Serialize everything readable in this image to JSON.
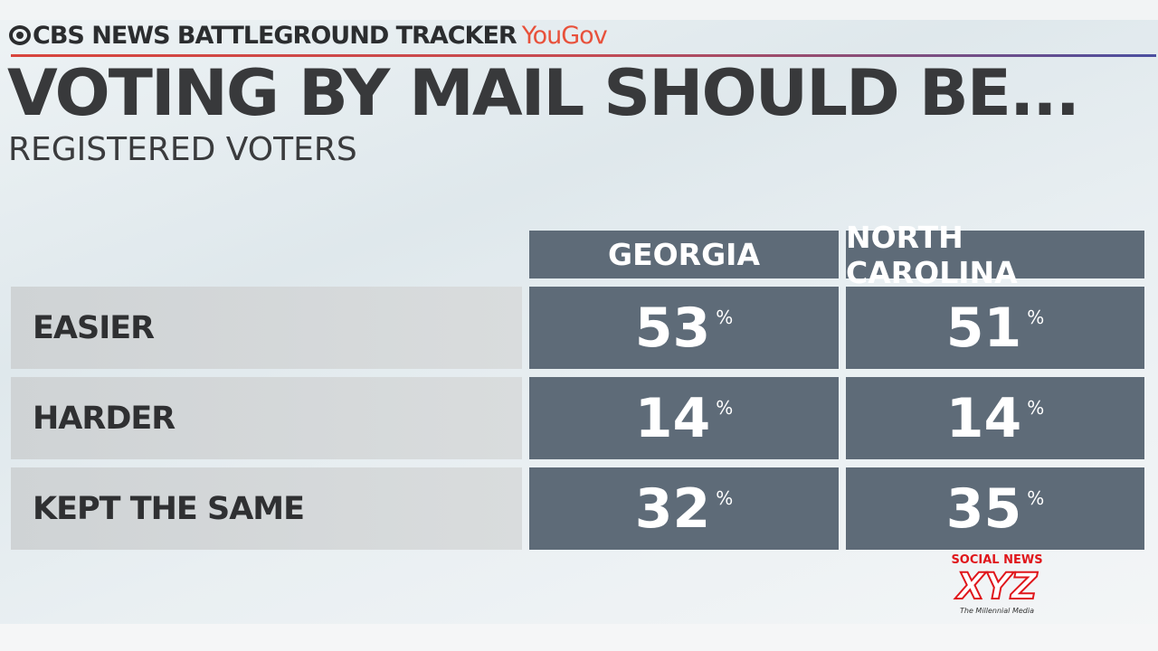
{
  "header": {
    "network": "CBS NEWS BATTLEGROUND TRACKER",
    "partner": "YouGov"
  },
  "title": "VOTING BY MAIL SHOULD BE...",
  "subtitle": "REGISTERED VOTERS",
  "chart_data": {
    "type": "table",
    "columns": [
      "GEORGIA",
      "NORTH CAROLINA"
    ],
    "rows": [
      {
        "label": "EASIER",
        "values": [
          53,
          51
        ]
      },
      {
        "label": "HARDER",
        "values": [
          14,
          14
        ]
      },
      {
        "label": "KEPT THE SAME",
        "values": [
          32,
          35
        ]
      }
    ],
    "unit": "%"
  },
  "watermark": {
    "line1": "SOCIAL NEWS",
    "line2": "XYZ",
    "line3": "The Millennial Media"
  },
  "colors": {
    "cell": "#5e6b78",
    "yougov": "#e8513b",
    "watermark": "#e0161b"
  }
}
